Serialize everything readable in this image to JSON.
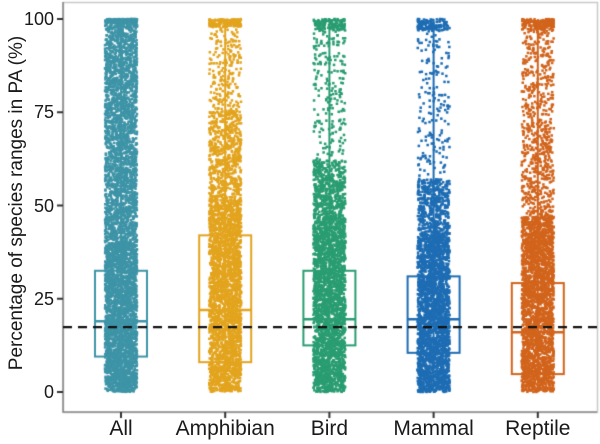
{
  "figure": {
    "kind": "strip-plot-with-boxplots",
    "background": "#ffffff",
    "axis_text_color": "#1a1a1a",
    "panel_border_color": "#c9c9c9",
    "axis_line_color": "#8a8a8a",
    "tick_mark_color": "#333333"
  },
  "chart_data": {
    "type": "scatter",
    "subtype": "jittered-strip-with-boxplot",
    "title": "",
    "xlabel": "",
    "ylabel": "Percentage of species ranges in PA (%)",
    "ylim": [
      0,
      100
    ],
    "yticks": [
      0,
      25,
      50,
      75,
      100
    ],
    "grid": "off",
    "legend": "none",
    "dashed_reference_line": {
      "y": 17.4,
      "color": "#111111",
      "style": "dashed"
    },
    "categories": [
      "All",
      "Amphibian",
      "Bird",
      "Mammal",
      "Reptile"
    ],
    "series": [
      {
        "name": "All",
        "color": "#3e94a7",
        "box": {
          "q1": 9.5,
          "median": 19.0,
          "q3": 32.5,
          "whisker_low": 0,
          "whisker_high": 100
        },
        "density_segments": [
          [
            0,
            40,
            2600
          ],
          [
            40,
            75,
            1500
          ],
          [
            75,
            99,
            1000
          ],
          [
            99,
            100,
            220
          ]
        ]
      },
      {
        "name": "Amphibian",
        "color": "#e3a41e",
        "box": {
          "q1": 8.0,
          "median": 22.0,
          "q3": 42.0,
          "whisker_low": 0,
          "whisker_high": 100
        },
        "density_segments": [
          [
            0,
            52,
            2600
          ],
          [
            52,
            75,
            620
          ],
          [
            75,
            98,
            230
          ],
          [
            98,
            100,
            160
          ]
        ]
      },
      {
        "name": "Bird",
        "color": "#2a9d72",
        "box": {
          "q1": 12.5,
          "median": 19.5,
          "q3": 32.5,
          "whisker_low": 0,
          "whisker_high": 100
        },
        "density_segments": [
          [
            0,
            47,
            2500
          ],
          [
            47,
            62,
            520
          ],
          [
            62,
            97,
            210
          ],
          [
            97,
            100,
            150
          ]
        ]
      },
      {
        "name": "Mammal",
        "color": "#1e6db4",
        "box": {
          "q1": 10.5,
          "median": 19.5,
          "q3": 31.0,
          "whisker_low": 0,
          "whisker_high": 100
        },
        "density_segments": [
          [
            0,
            42,
            2500
          ],
          [
            42,
            57,
            500
          ],
          [
            57,
            97,
            180
          ],
          [
            97,
            100,
            130
          ]
        ]
      },
      {
        "name": "Reptile",
        "color": "#d2641c",
        "box": {
          "q1": 4.8,
          "median": 16.0,
          "q3": 29.2,
          "whisker_low": 0,
          "whisker_high": 100
        },
        "density_segments": [
          [
            0,
            47,
            2500
          ],
          [
            47,
            75,
            430
          ],
          [
            75,
            97,
            250
          ],
          [
            97,
            100,
            170
          ]
        ]
      }
    ]
  }
}
